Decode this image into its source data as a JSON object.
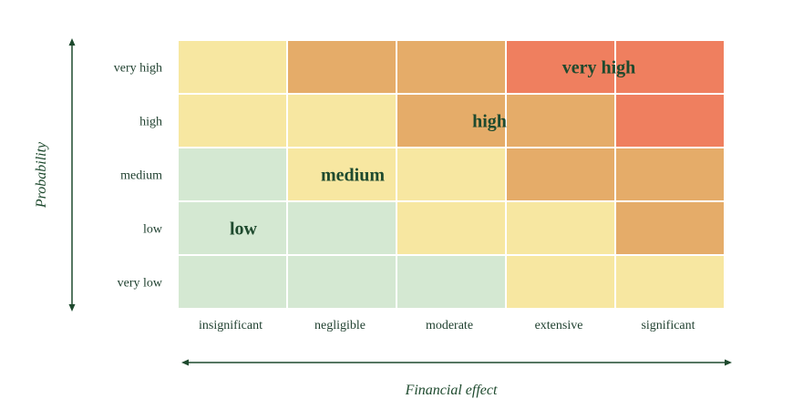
{
  "chart_data": {
    "type": "heatmap",
    "xlabel": "Financial effect",
    "ylabel": "Probability",
    "x_categories": [
      "insignificant",
      "negligible",
      "moderate",
      "extensive",
      "significant"
    ],
    "y_categories": [
      "very low",
      "low",
      "medium",
      "high",
      "very high"
    ],
    "levels": {
      "low": "#d4e8d2",
      "medium": "#f7e7a1",
      "high": "#e5ac69",
      "very_high": "#ef7f5f"
    },
    "grid": [
      [
        "medium",
        "high",
        "high",
        "very_high",
        "very_high"
      ],
      [
        "medium",
        "medium",
        "high",
        "high",
        "very_high"
      ],
      [
        "low",
        "medium",
        "medium",
        "high",
        "high"
      ],
      [
        "low",
        "low",
        "medium",
        "medium",
        "high"
      ],
      [
        "low",
        "low",
        "low",
        "medium",
        "medium"
      ]
    ],
    "zone_labels": [
      {
        "text": "very high",
        "row": 0,
        "col": 3.85
      },
      {
        "text": "high",
        "row": 1,
        "col": 2.85
      },
      {
        "text": "medium",
        "row": 2,
        "col": 1.6
      },
      {
        "text": "low",
        "row": 3,
        "col": 0.6
      }
    ]
  }
}
